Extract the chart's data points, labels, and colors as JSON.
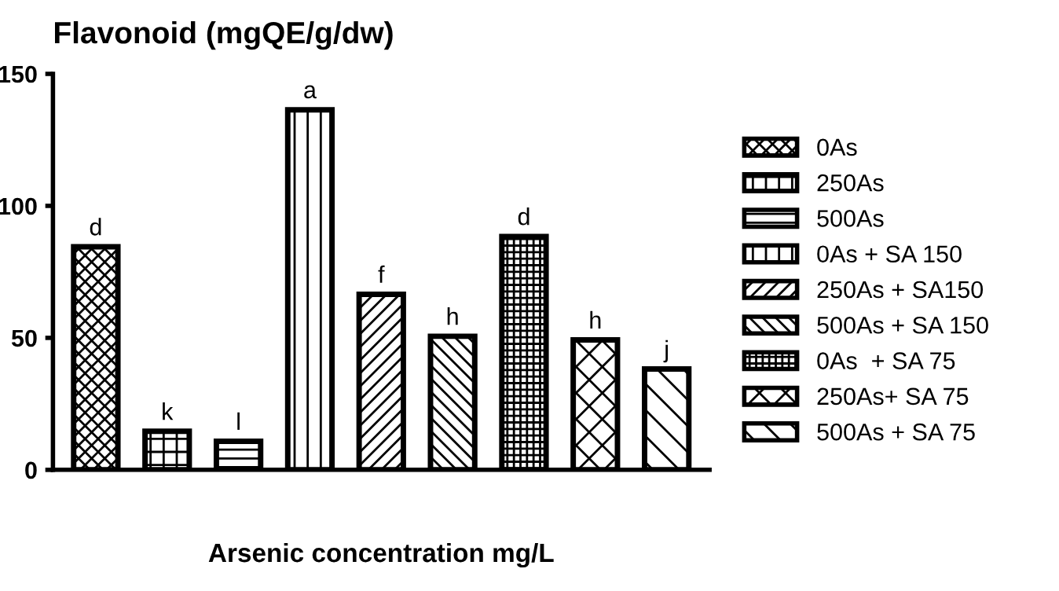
{
  "chart_data": {
    "type": "bar",
    "title": "Flavonoid (mgQE/g/dw)",
    "xlabel": "Arsenic concentration mg/L",
    "categories": [
      null,
      null,
      null,
      null,
      null,
      null,
      null,
      null,
      null
    ],
    "series": [
      {
        "name": "0As",
        "color": "#000000",
        "values": [
          84.5,
          null,
          null,
          null,
          null,
          null,
          null,
          null,
          null
        ]
      },
      {
        "name": "250As",
        "color": "#000000",
        "values": [
          null,
          14.6,
          null,
          null,
          null,
          null,
          null,
          null,
          null
        ]
      },
      {
        "name": "500As",
        "color": "#000000",
        "values": [
          null,
          null,
          10.8,
          null,
          null,
          null,
          null,
          null,
          null
        ]
      },
      {
        "name": "0As + SA 150",
        "color": "#000000",
        "values": [
          null,
          null,
          null,
          136.4,
          null,
          null,
          null,
          null,
          null
        ]
      },
      {
        "name": "250As + SA150",
        "color": "#000000",
        "values": [
          null,
          null,
          null,
          null,
          66.5,
          null,
          null,
          null,
          null
        ]
      },
      {
        "name": "500As + SA 150",
        "color": "#000000",
        "values": [
          null,
          null,
          null,
          null,
          null,
          50.6,
          null,
          null,
          null
        ]
      },
      {
        "name": "0As  + SA 75",
        "color": "#000000",
        "values": [
          null,
          null,
          null,
          null,
          null,
          null,
          88.4,
          null,
          null
        ]
      },
      {
        "name": "250As+ SA 75",
        "color": "#000000",
        "values": [
          null,
          null,
          null,
          null,
          null,
          null,
          null,
          49.2,
          null
        ]
      },
      {
        "name": "500As + SA 75",
        "color": "#000000",
        "values": [
          null,
          null,
          null,
          null,
          null,
          null,
          null,
          null,
          38.2
        ]
      }
    ],
    "annotations": [
      {
        "text": "d",
        "y": 84.5
      },
      {
        "text": "k",
        "y": 14.6
      },
      {
        "text": "l",
        "y": 10.8
      },
      {
        "text": "a",
        "y": 136.4
      },
      {
        "text": "f",
        "y": 66.5
      },
      {
        "text": "h",
        "y": 50.6
      },
      {
        "text": "d",
        "y": 88.4
      },
      {
        "text": "h",
        "y": 49.2
      },
      {
        "text": "j",
        "y": 38.2
      }
    ],
    "ylim": [
      0,
      150
    ],
    "yticks": [
      0,
      50,
      100,
      150
    ],
    "grid": false,
    "legend": "right"
  }
}
